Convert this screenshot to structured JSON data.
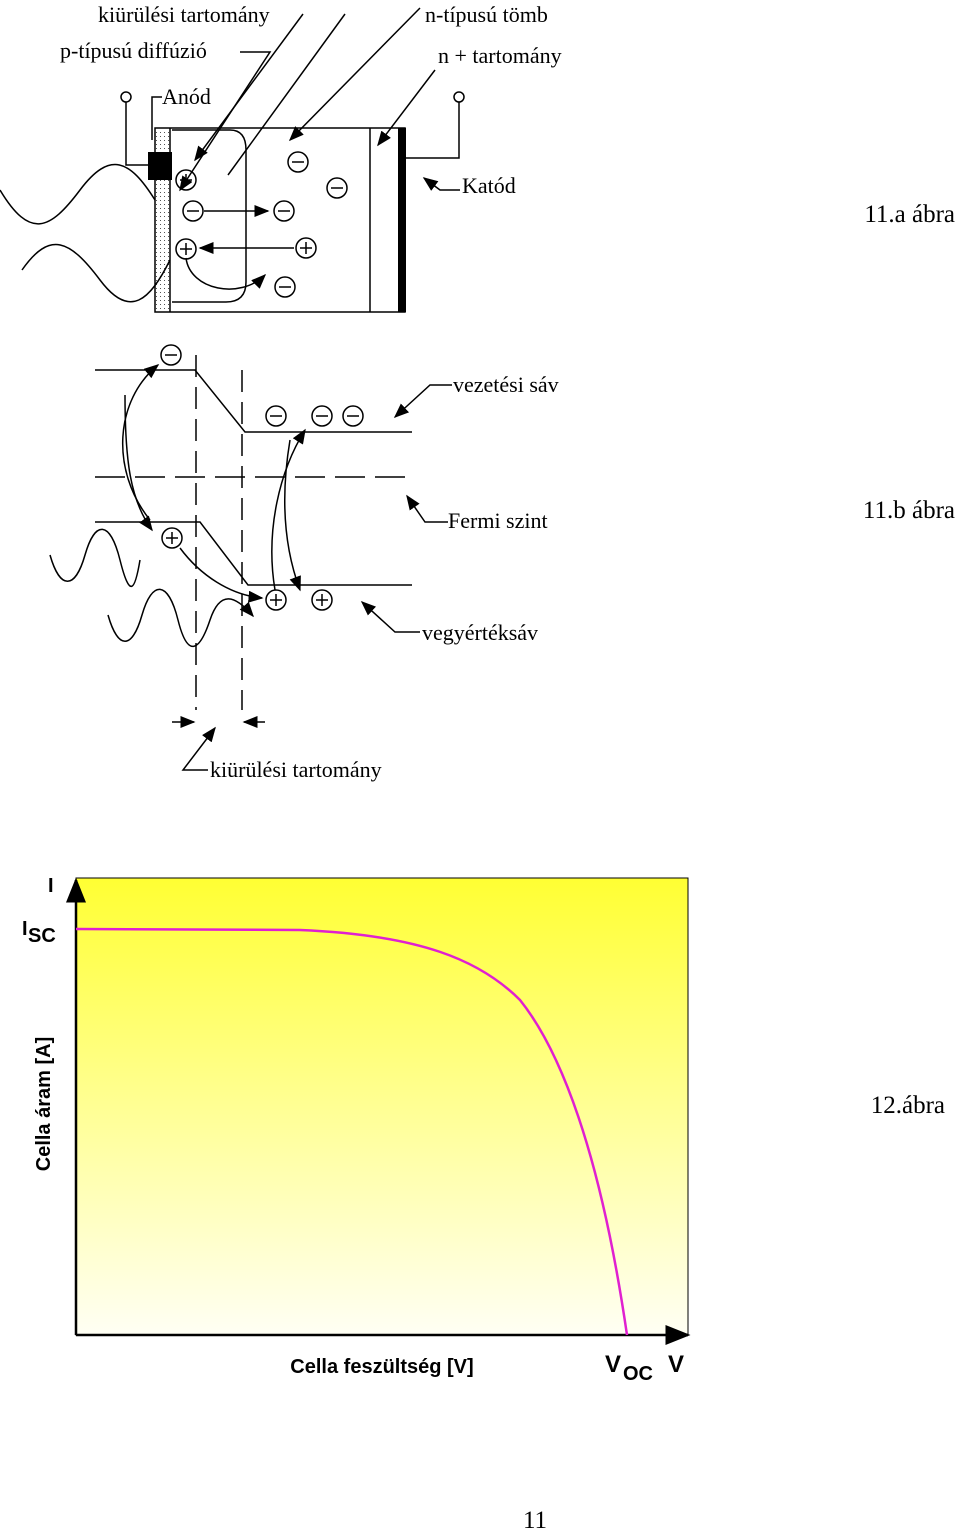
{
  "figure_11a": {
    "labels": {
      "depletion_region": "kiürülési tartomány",
      "p_diffusion": "p-típusú diffúzió",
      "anode": "Anód",
      "n_bulk": "n-típusú tömb",
      "n_plus_region": "n + tartomány",
      "cathode": "Katód"
    },
    "caption": "11.a ábra"
  },
  "figure_11b": {
    "labels": {
      "conduction_band": "vezetési sáv",
      "fermi_level": "Fermi szint",
      "valence_band": "vegyértéksáv",
      "depletion_region": "kiürülési tartomány"
    },
    "caption": "11.b ábra"
  },
  "figure_12": {
    "y_axis_symbol": "I",
    "isc_symbol": "I",
    "isc_subscript": "SC",
    "y_axis_title": "Cella áram [A]",
    "x_axis_title": "Cella feszültség [V]",
    "voc_symbol": "V",
    "voc_subscript": "OC",
    "x_axis_symbol": "V",
    "caption": "12.ábra"
  },
  "page_number": "11"
}
